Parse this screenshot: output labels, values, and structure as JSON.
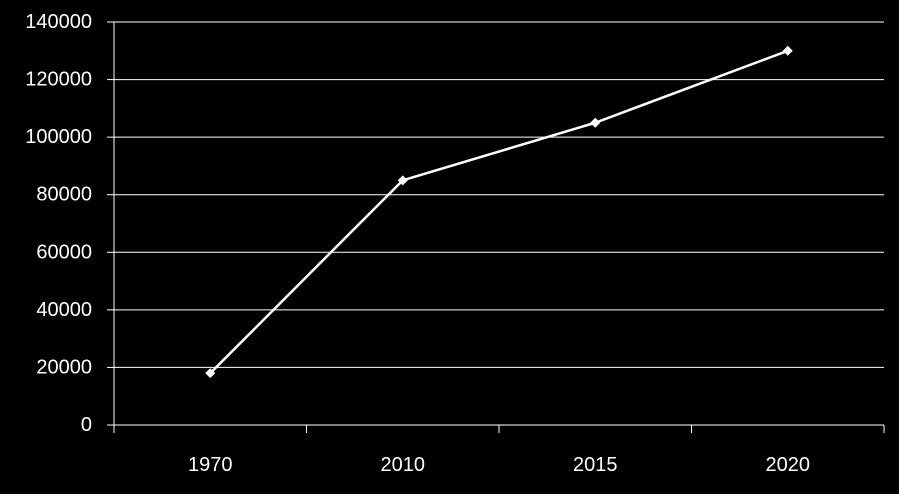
{
  "chart_data": {
    "type": "line",
    "title": "",
    "xlabel": "",
    "ylabel": "",
    "categories": [
      "1970",
      "2010",
      "2015",
      "2020"
    ],
    "series": [
      {
        "values": [
          18000,
          85000,
          105000,
          130000
        ]
      }
    ],
    "ylim": [
      0,
      140000
    ],
    "yticks": [
      "0",
      "20000",
      "40000",
      "60000",
      "80000",
      "100000",
      "120000",
      "140000"
    ],
    "grid": "horizontal",
    "legend": "none",
    "colors": {
      "background": "#000000",
      "line": "#ffffff",
      "gridline": "#ffffff",
      "text": "#ffffff"
    }
  }
}
